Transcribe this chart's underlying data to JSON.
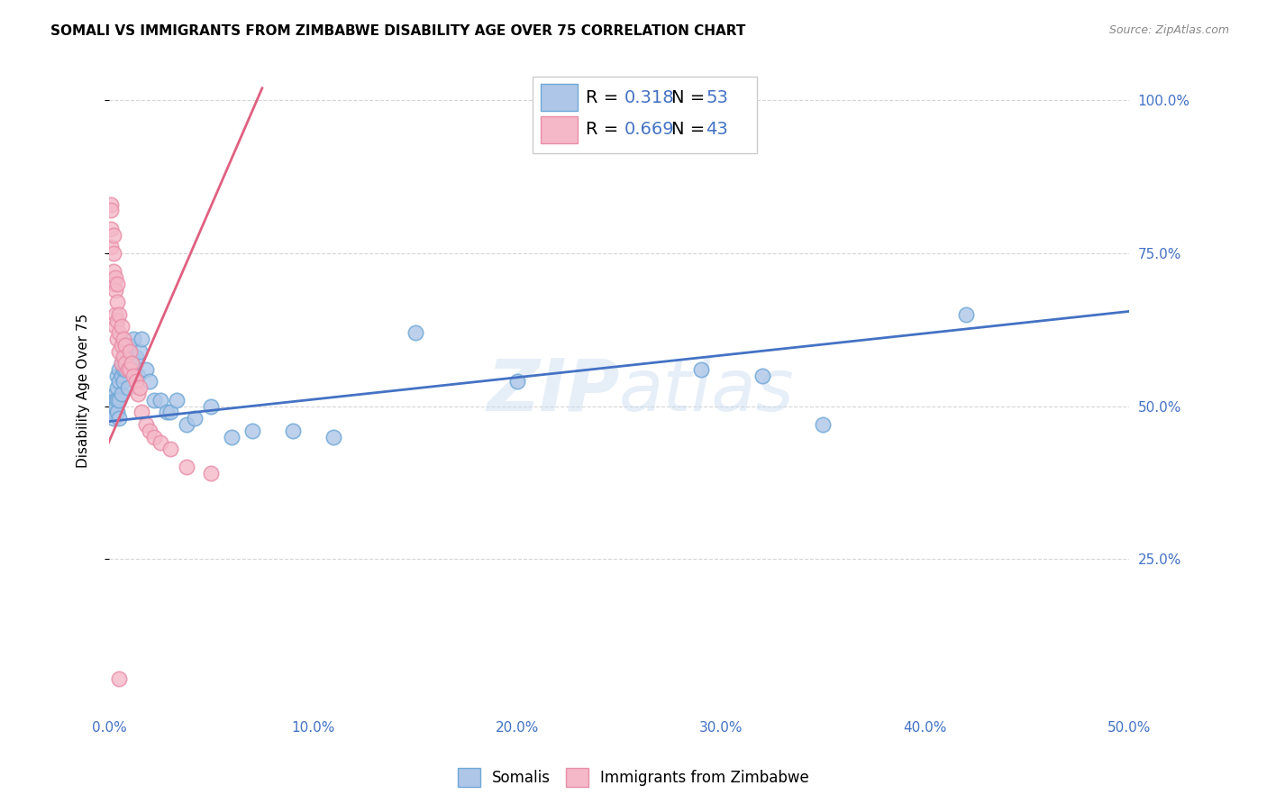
{
  "title": "SOMALI VS IMMIGRANTS FROM ZIMBABWE DISABILITY AGE OVER 75 CORRELATION CHART",
  "source": "Source: ZipAtlas.com",
  "ylabel": "Disability Age Over 75",
  "xlim": [
    0,
    0.5
  ],
  "ylim": [
    0,
    1.05
  ],
  "yticks": [
    0.25,
    0.5,
    0.75,
    1.0
  ],
  "ytick_labels": [
    "25.0%",
    "50.0%",
    "75.0%",
    "100.0%"
  ],
  "xticks": [
    0.0,
    0.1,
    0.2,
    0.3,
    0.4,
    0.5
  ],
  "xtick_labels": [
    "0.0%",
    "10.0%",
    "20.0%",
    "30.0%",
    "40.0%",
    "50.0%"
  ],
  "watermark": "ZIPatlas",
  "somali_x": [
    0.001,
    0.001,
    0.002,
    0.002,
    0.002,
    0.003,
    0.003,
    0.003,
    0.004,
    0.004,
    0.004,
    0.004,
    0.005,
    0.005,
    0.005,
    0.005,
    0.006,
    0.006,
    0.006,
    0.007,
    0.007,
    0.007,
    0.008,
    0.008,
    0.009,
    0.01,
    0.01,
    0.011,
    0.012,
    0.013,
    0.014,
    0.015,
    0.016,
    0.018,
    0.02,
    0.022,
    0.025,
    0.028,
    0.03,
    0.033,
    0.038,
    0.042,
    0.05,
    0.06,
    0.07,
    0.09,
    0.11,
    0.15,
    0.2,
    0.29,
    0.32,
    0.35,
    0.42
  ],
  "somali_y": [
    0.5,
    0.49,
    0.51,
    0.49,
    0.48,
    0.52,
    0.51,
    0.5,
    0.55,
    0.53,
    0.51,
    0.49,
    0.56,
    0.54,
    0.51,
    0.48,
    0.57,
    0.55,
    0.52,
    0.58,
    0.56,
    0.54,
    0.59,
    0.56,
    0.53,
    0.6,
    0.56,
    0.58,
    0.61,
    0.58,
    0.55,
    0.59,
    0.61,
    0.56,
    0.54,
    0.51,
    0.51,
    0.49,
    0.49,
    0.51,
    0.47,
    0.48,
    0.5,
    0.45,
    0.46,
    0.46,
    0.45,
    0.62,
    0.54,
    0.56,
    0.55,
    0.47,
    0.65
  ],
  "zimbabwe_x": [
    0.001,
    0.001,
    0.001,
    0.001,
    0.002,
    0.002,
    0.002,
    0.002,
    0.003,
    0.003,
    0.003,
    0.003,
    0.004,
    0.004,
    0.004,
    0.004,
    0.005,
    0.005,
    0.005,
    0.006,
    0.006,
    0.006,
    0.007,
    0.007,
    0.008,
    0.008,
    0.009,
    0.01,
    0.01,
    0.011,
    0.012,
    0.013,
    0.014,
    0.015,
    0.016,
    0.018,
    0.02,
    0.022,
    0.025,
    0.03,
    0.038,
    0.05,
    0.005
  ],
  "zimbabwe_y": [
    0.83,
    0.82,
    0.79,
    0.76,
    0.78,
    0.75,
    0.72,
    0.7,
    0.71,
    0.69,
    0.65,
    0.63,
    0.7,
    0.67,
    0.64,
    0.61,
    0.65,
    0.62,
    0.59,
    0.63,
    0.6,
    0.57,
    0.61,
    0.58,
    0.6,
    0.57,
    0.56,
    0.59,
    0.56,
    0.57,
    0.55,
    0.54,
    0.52,
    0.53,
    0.49,
    0.47,
    0.46,
    0.45,
    0.44,
    0.43,
    0.4,
    0.39,
    0.055
  ],
  "blue_line_x": [
    0.0,
    0.5
  ],
  "blue_line_y": [
    0.475,
    0.655
  ],
  "pink_line_x": [
    -0.001,
    0.075
  ],
  "pink_line_y": [
    0.435,
    1.02
  ],
  "title_fontsize": 11,
  "tick_color": "#4472c4",
  "grid_color": "#cccccc",
  "scatter_blue": "#aec6e8",
  "scatter_pink": "#f4b8c8",
  "scatter_blue_edge": "#6fa8d6",
  "scatter_pink_edge": "#e88fa8",
  "line_blue": "#4472c4",
  "line_pink": "#e06080"
}
